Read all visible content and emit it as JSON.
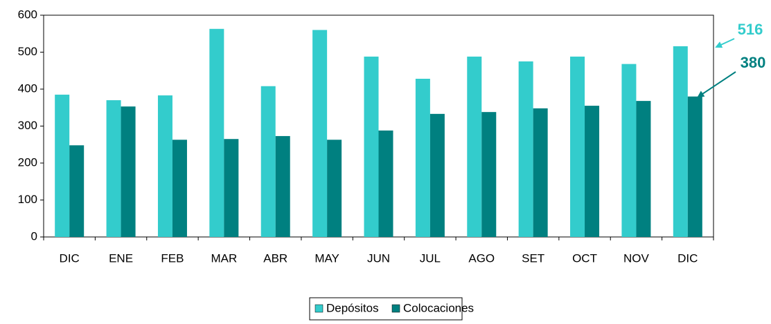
{
  "chart_data": {
    "type": "bar",
    "categories": [
      "DIC",
      "ENE",
      "FEB",
      "MAR",
      "ABR",
      "MAY",
      "JUN",
      "JUL",
      "AGO",
      "SET",
      "OCT",
      "NOV",
      "DIC"
    ],
    "series": [
      {
        "name": "Depósitos",
        "color": "#33cccc",
        "values": [
          385,
          370,
          383,
          563,
          408,
          560,
          488,
          428,
          488,
          475,
          488,
          468,
          516
        ]
      },
      {
        "name": "Colocaciones",
        "color": "#008080",
        "values": [
          248,
          353,
          263,
          265,
          273,
          263,
          288,
          333,
          338,
          348,
          355,
          368,
          380
        ]
      }
    ],
    "ylim": [
      0,
      600
    ],
    "yticks": [
      0,
      100,
      200,
      300,
      400,
      500,
      600
    ],
    "legend": "bottom"
  }
}
